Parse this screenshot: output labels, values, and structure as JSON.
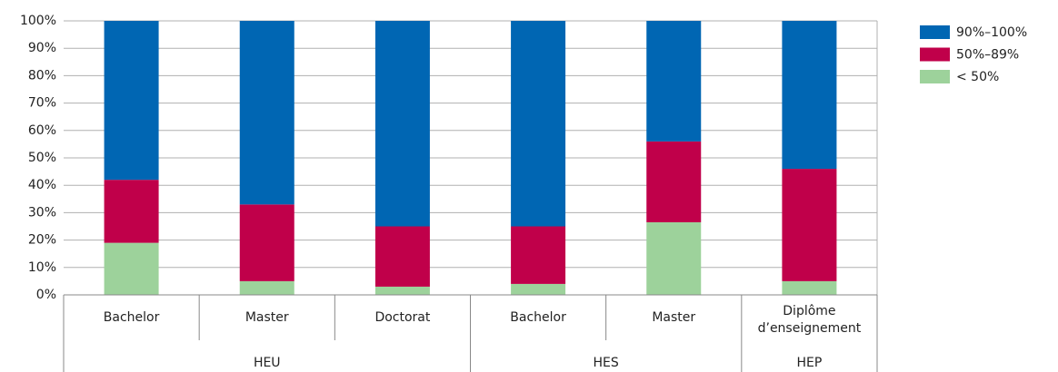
{
  "chart_data": {
    "type": "stacked_bar",
    "groups": [
      {
        "name": "HEU",
        "categories": [
          "Bachelor",
          "Master",
          "Doctorat"
        ]
      },
      {
        "name": "HES",
        "categories": [
          "Bachelor",
          "Master"
        ]
      },
      {
        "name": "HEP",
        "categories": [
          "Diplôme d’enseignement"
        ]
      }
    ],
    "series": [
      {
        "name": "< 50%",
        "color": "#9dd29b",
        "values": [
          19,
          5,
          3,
          4,
          26.5,
          5
        ]
      },
      {
        "name": "50%–89%",
        "color": "#c0004a",
        "values": [
          23,
          28,
          22,
          21,
          29.5,
          41
        ]
      },
      {
        "name": "90%–100%",
        "color": "#0066b3",
        "values": [
          58,
          67,
          75,
          75,
          44,
          54
        ]
      }
    ],
    "ylim": [
      0,
      100
    ],
    "yticks": [
      {
        "value": 0,
        "label": "0%"
      },
      {
        "value": 10,
        "label": "10%"
      },
      {
        "value": 20,
        "label": "20%"
      },
      {
        "value": 30,
        "label": "30%"
      },
      {
        "value": 40,
        "label": "40%"
      },
      {
        "value": 50,
        "label": "50%"
      },
      {
        "value": 60,
        "label": "60%"
      },
      {
        "value": 70,
        "label": "70%"
      },
      {
        "value": 80,
        "label": "80%"
      },
      {
        "value": 90,
        "label": "90%"
      },
      {
        "value": 100,
        "label": "100%"
      }
    ],
    "grid": true,
    "legend": "right"
  }
}
